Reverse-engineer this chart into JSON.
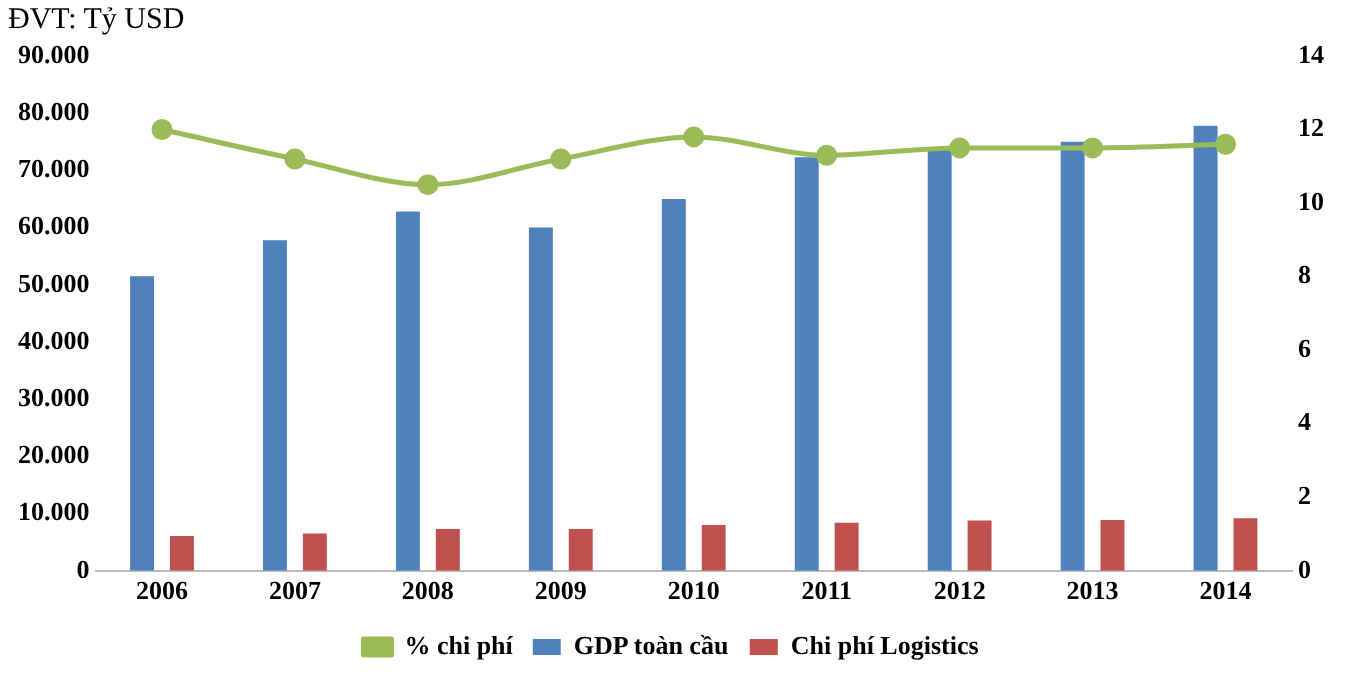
{
  "chart_data": {
    "type": "bar",
    "annotations": [
      "ĐVT: Tỷ USD"
    ],
    "categories": [
      "2006",
      "2007",
      "2008",
      "2009",
      "2010",
      "2011",
      "2012",
      "2013",
      "2014"
    ],
    "series": [
      {
        "name": "GDP toàn cầu",
        "color": "#4f81bd",
        "values": [
          51500,
          57800,
          62800,
          60000,
          65000,
          72300,
          73800,
          75000,
          77800
        ]
      },
      {
        "name": "Chi phí Logistics",
        "color": "#c0504d",
        "values": [
          6100,
          6500,
          7300,
          7300,
          8000,
          8400,
          8800,
          8900,
          9200
        ]
      },
      {
        "name": "% chi phí",
        "type": "line",
        "axis": "y2",
        "color": "#9bbb59",
        "values": [
          12.0,
          11.2,
          10.5,
          11.2,
          11.8,
          11.3,
          11.5,
          11.5,
          11.6
        ]
      }
    ],
    "ylim": [
      0,
      90000
    ],
    "yticks": [
      {
        "value": 0,
        "label": "0"
      },
      {
        "value": 10000,
        "label": "10.000"
      },
      {
        "value": 20000,
        "label": "20.000"
      },
      {
        "value": 30000,
        "label": "30.000"
      },
      {
        "value": 40000,
        "label": "40.000"
      },
      {
        "value": 50000,
        "label": "50.000"
      },
      {
        "value": 60000,
        "label": "60.000"
      },
      {
        "value": 70000,
        "label": "70.000"
      },
      {
        "value": 80000,
        "label": "80.000"
      },
      {
        "value": 90000,
        "label": "90.000"
      }
    ],
    "y2lim": [
      0,
      14
    ],
    "y2ticks": [
      0,
      2,
      4,
      6,
      8,
      10,
      12,
      14
    ],
    "grid": false,
    "legend": "bottom",
    "marker": "circle"
  }
}
